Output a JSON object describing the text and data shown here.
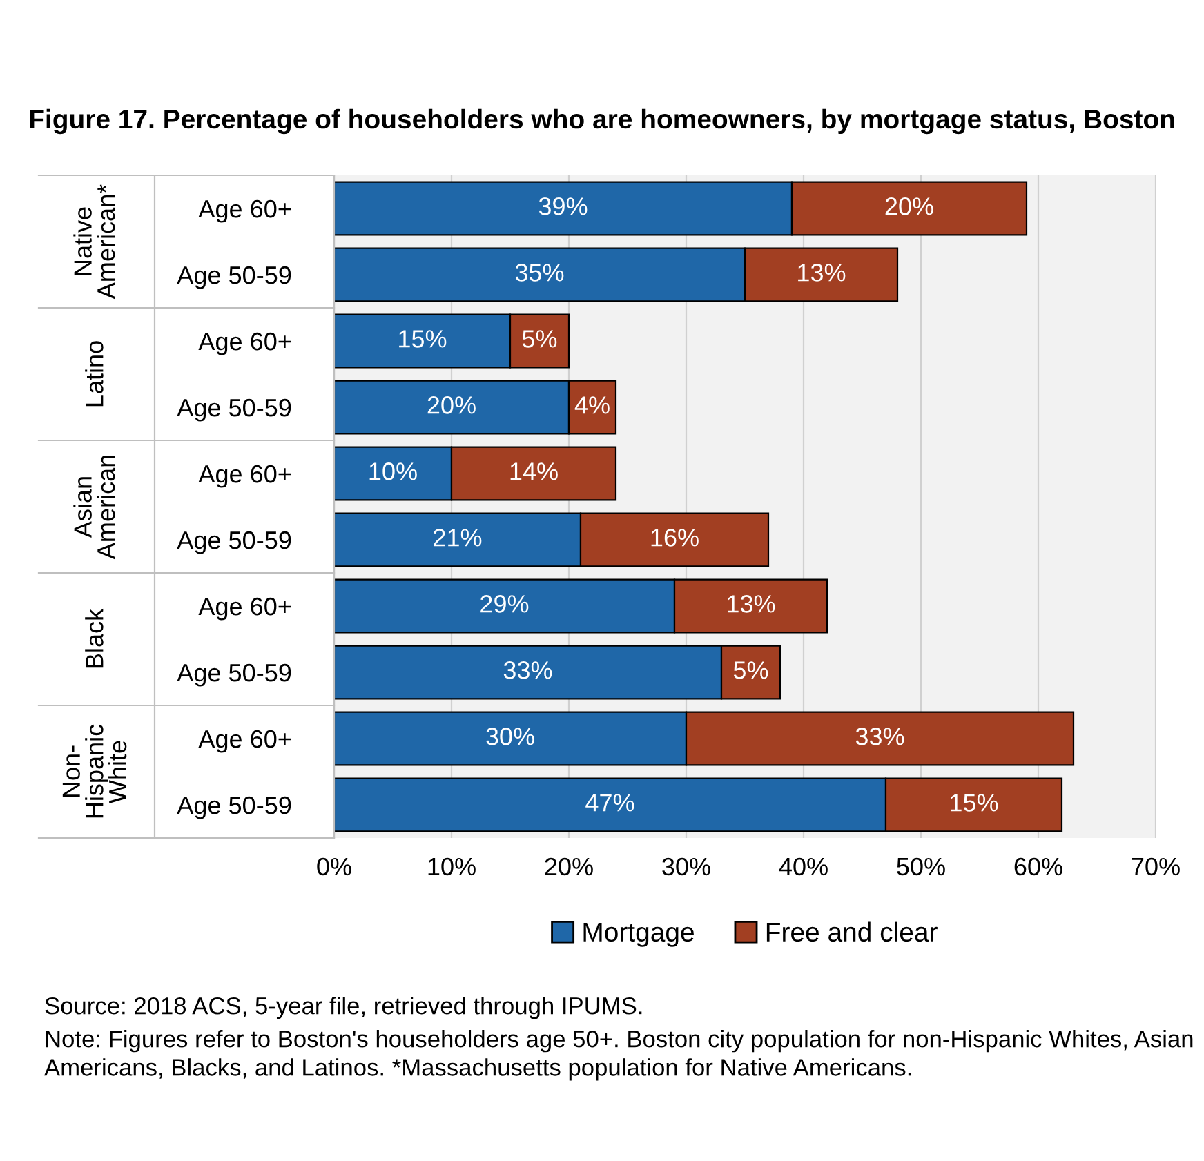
{
  "chart_data": {
    "type": "bar",
    "orientation": "horizontal",
    "stacked": true,
    "title": "Figure 17. Percentage of householders who are homeowners, by mortgage status, Boston",
    "categories": [
      "Age 60+",
      "Age 50-59",
      "Age 60+",
      "Age 50-59",
      "Age 60+",
      "Age 50-59",
      "Age 60+",
      "Age 50-59",
      "Age 60+",
      "Age 50-59"
    ],
    "series": [
      {
        "name": "Mortgage",
        "color": "#1f67a8",
        "values": [
          39,
          35,
          15,
          20,
          10,
          21,
          29,
          33,
          30,
          47
        ],
        "value_labels": [
          "39%",
          "35%",
          "15%",
          "20%",
          "10%",
          "21%",
          "29%",
          "33%",
          "30%",
          "47%"
        ]
      },
      {
        "name": "Free and clear",
        "color": "#a23f22",
        "values": [
          20,
          13,
          5,
          4,
          14,
          16,
          13,
          5,
          33,
          15
        ],
        "value_labels": [
          "20%",
          "13%",
          "5%",
          "4%",
          "14%",
          "16%",
          "13%",
          "5%",
          "33%",
          "15%"
        ]
      }
    ],
    "xlim": [
      0,
      70
    ],
    "xticks": [
      {
        "value": 0,
        "label": "0%"
      },
      {
        "value": 10,
        "label": "10%"
      },
      {
        "value": 20,
        "label": "20%"
      },
      {
        "value": 30,
        "label": "30%"
      },
      {
        "value": 40,
        "label": "40%"
      },
      {
        "value": 50,
        "label": "50%"
      },
      {
        "value": 60,
        "label": "60%"
      },
      {
        "value": 70,
        "label": "70%"
      }
    ],
    "grid": "x",
    "legend": "bottom",
    "annotations": [
      "Native\nAmerican*",
      "Latino",
      "Asian\nAmerican",
      "Black",
      "Non-\nHispanic\nWhite",
      "Source: 2018 ACS, 5-year file, retrieved through IPUMS.",
      "Note: Figures refer to Boston's householders age 50+. Boston city population for non-Hispanic Whites, Asian Americans, Blacks, and Latinos. *Massachusetts population for Native Americans."
    ]
  }
}
